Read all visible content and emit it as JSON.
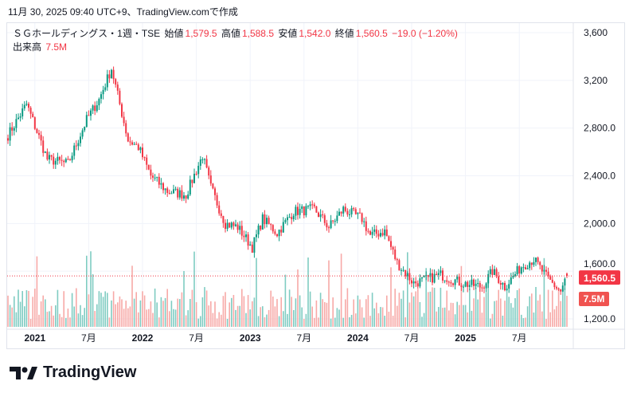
{
  "caption": "11月 30, 2025 09:40 UTC+9、TradingView.comで作成",
  "legend": {
    "symbol": "ＳＧホールディングス・1週・TSE",
    "open_label": "始値",
    "open": "1,579.5",
    "high_label": "高値",
    "high": "1,588.5",
    "low_label": "安値",
    "low": "1,542.0",
    "close_label": "終値",
    "close": "1,560.5",
    "change": "−19.0 (−1.20%)",
    "volume_label": "出来高",
    "volume": "7.5M"
  },
  "logo": "TradingView",
  "colors": {
    "up": "#089981",
    "down": "#f23645",
    "vol_up": "#7fccc2",
    "vol_down": "#f7a9a7"
  },
  "chart_data": {
    "type": "candlestick",
    "title": "ＳＧホールディングス・1週・TSE",
    "interval": "weekly",
    "ylim": [
      1150,
      3700
    ],
    "y_ticks": [
      "3,600",
      "3,200",
      "2,800.0",
      "2,400.0",
      "2,000.0",
      "1,600.0",
      "1,200.0"
    ],
    "y_tick_values": [
      3600,
      3200,
      2800,
      2400,
      2000,
      1600,
      1200
    ],
    "x_ticks": [
      "2021",
      "7月",
      "2022",
      "7月",
      "2023",
      "7月",
      "2024",
      "7月",
      "2025",
      "7月"
    ],
    "x_tick_weeks": [
      13,
      39,
      65,
      91,
      117,
      143,
      169,
      195,
      221,
      247
    ],
    "approx_closes": [
      {
        "week": 0,
        "close": 2740
      },
      {
        "week": 9,
        "close": 3000
      },
      {
        "week": 19,
        "close": 2540
      },
      {
        "week": 29,
        "close": 2500
      },
      {
        "week": 38,
        "close": 2870
      },
      {
        "week": 44,
        "close": 3040
      },
      {
        "week": 50,
        "close": 3300
      },
      {
        "week": 54,
        "close": 3000
      },
      {
        "week": 58,
        "close": 2700
      },
      {
        "week": 63,
        "close": 2640
      },
      {
        "week": 69,
        "close": 2400
      },
      {
        "week": 77,
        "close": 2270
      },
      {
        "week": 86,
        "close": 2240
      },
      {
        "week": 94,
        "close": 2570
      },
      {
        "week": 98,
        "close": 2300
      },
      {
        "week": 105,
        "close": 2000
      },
      {
        "week": 111,
        "close": 1970
      },
      {
        "week": 118,
        "close": 1800
      },
      {
        "week": 123,
        "close": 2040
      },
      {
        "week": 130,
        "close": 1920
      },
      {
        "week": 138,
        "close": 2100
      },
      {
        "week": 148,
        "close": 2120
      },
      {
        "week": 155,
        "close": 1970
      },
      {
        "week": 162,
        "close": 2120
      },
      {
        "week": 171,
        "close": 2040
      },
      {
        "week": 175,
        "close": 1900
      },
      {
        "week": 182,
        "close": 1935
      },
      {
        "week": 188,
        "close": 1670
      },
      {
        "week": 196,
        "close": 1500
      },
      {
        "week": 202,
        "close": 1530
      },
      {
        "week": 209,
        "close": 1570
      },
      {
        "week": 219,
        "close": 1500
      },
      {
        "week": 229,
        "close": 1470
      },
      {
        "week": 234,
        "close": 1600
      },
      {
        "week": 240,
        "close": 1470
      },
      {
        "week": 248,
        "close": 1640
      },
      {
        "week": 254,
        "close": 1700
      },
      {
        "week": 261,
        "close": 1530
      },
      {
        "week": 267,
        "close": 1430
      },
      {
        "week": 270,
        "close": 1560.5
      }
    ],
    "last_price": "1,560.5",
    "last_volume": "7.5M"
  }
}
